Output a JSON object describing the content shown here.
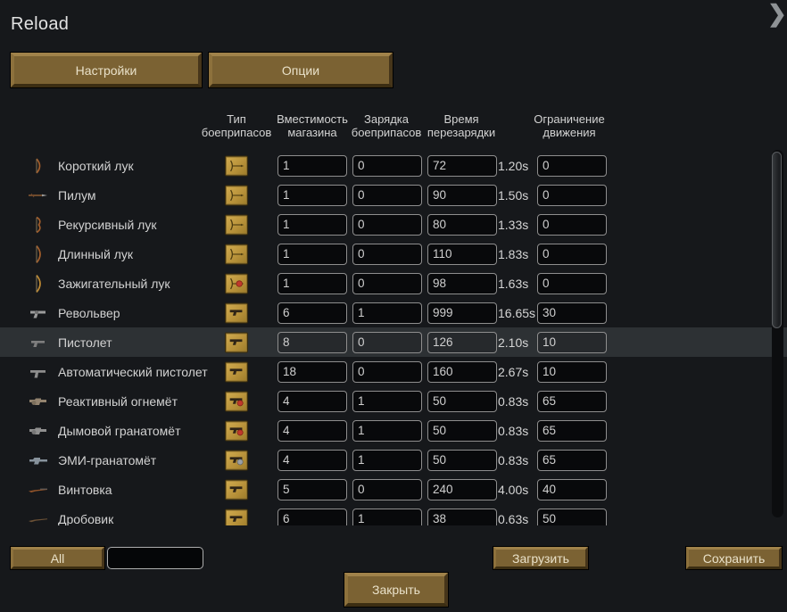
{
  "title": "Reload",
  "collapse_icon": "❯",
  "tabs": {
    "settings": "Настройки",
    "options": "Опции"
  },
  "columns": {
    "ammo_type": "Тип боеприпасов",
    "magazine_capacity": "Вместимость магазина",
    "ammo_loading": "Зарядка боеприпасов",
    "reload_time": "Время перезарядки",
    "movement_limit": "Ограничение движения"
  },
  "rows": [
    {
      "name": "Короткий лук",
      "weapon_icon": "short-bow",
      "ammo_icon": "arrow-card",
      "magazine": "1",
      "loading": "0",
      "reload_ticks": "72",
      "reload_seconds": "1.20s",
      "movement": "0",
      "highlighted": false
    },
    {
      "name": "Пилум",
      "weapon_icon": "pilum",
      "ammo_icon": "arrow-card",
      "magazine": "1",
      "loading": "0",
      "reload_ticks": "90",
      "reload_seconds": "1.50s",
      "movement": "0",
      "highlighted": false
    },
    {
      "name": "Рекурсивный лук",
      "weapon_icon": "recurve-bow",
      "ammo_icon": "arrow-card",
      "magazine": "1",
      "loading": "0",
      "reload_ticks": "80",
      "reload_seconds": "1.33s",
      "movement": "0",
      "highlighted": false
    },
    {
      "name": "Длинный лук",
      "weapon_icon": "long-bow",
      "ammo_icon": "arrow-card",
      "magazine": "1",
      "loading": "0",
      "reload_ticks": "110",
      "reload_seconds": "1.83s",
      "movement": "0",
      "highlighted": false
    },
    {
      "name": "Зажигательный лук",
      "weapon_icon": "fire-bow",
      "ammo_icon": "arrow-fire-card",
      "magazine": "1",
      "loading": "0",
      "reload_ticks": "98",
      "reload_seconds": "1.63s",
      "movement": "0",
      "highlighted": false
    },
    {
      "name": "Револьвер",
      "weapon_icon": "revolver",
      "ammo_icon": "gun-card",
      "magazine": "6",
      "loading": "1",
      "reload_ticks": "999",
      "reload_seconds": "16.65s",
      "movement": "30",
      "highlighted": false
    },
    {
      "name": "Пистолет",
      "weapon_icon": "pistol",
      "ammo_icon": "gun-card",
      "magazine": "8",
      "loading": "0",
      "reload_ticks": "126",
      "reload_seconds": "2.10s",
      "movement": "10",
      "highlighted": true
    },
    {
      "name": "Автоматический пистолет",
      "weapon_icon": "autopistol",
      "ammo_icon": "gun-card",
      "magazine": "18",
      "loading": "0",
      "reload_ticks": "160",
      "reload_seconds": "2.67s",
      "movement": "10",
      "highlighted": false
    },
    {
      "name": "Реактивный огнемёт",
      "weapon_icon": "flame-launcher",
      "ammo_icon": "gun-red-card",
      "magazine": "4",
      "loading": "1",
      "reload_ticks": "50",
      "reload_seconds": "0.83s",
      "movement": "65",
      "highlighted": false
    },
    {
      "name": "Дымовой гранатомёт",
      "weapon_icon": "smoke-launcher",
      "ammo_icon": "gun-red-card",
      "magazine": "4",
      "loading": "1",
      "reload_ticks": "50",
      "reload_seconds": "0.83s",
      "movement": "65",
      "highlighted": false
    },
    {
      "name": "ЭМИ-гранатомёт",
      "weapon_icon": "emp-launcher",
      "ammo_icon": "gun-gray-card",
      "magazine": "4",
      "loading": "1",
      "reload_ticks": "50",
      "reload_seconds": "0.83s",
      "movement": "65",
      "highlighted": false
    },
    {
      "name": "Винтовка",
      "weapon_icon": "rifle",
      "ammo_icon": "gun-card",
      "magazine": "5",
      "loading": "0",
      "reload_ticks": "240",
      "reload_seconds": "4.00s",
      "movement": "40",
      "highlighted": false
    },
    {
      "name": "Дробовик",
      "weapon_icon": "shotgun",
      "ammo_icon": "gun-card",
      "magazine": "6",
      "loading": "1",
      "reload_ticks": "38",
      "reload_seconds": "0.63s",
      "movement": "50",
      "highlighted": false
    }
  ],
  "footer": {
    "all_label": "All",
    "filter_value": "",
    "load_label": "Загрузить",
    "save_label": "Сохранить",
    "close_label": "Закрыть"
  },
  "colors": {
    "background": "#16181b",
    "button_brown": "#7b6233",
    "row_highlight": "#2d3134",
    "ammo_card_gold": "#b8923a",
    "alert_red": "#c0392b"
  }
}
